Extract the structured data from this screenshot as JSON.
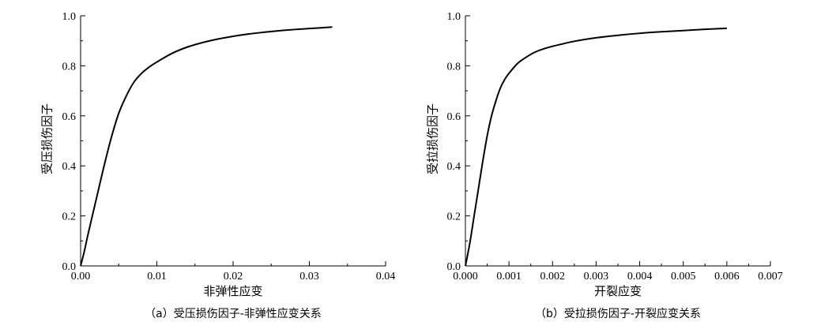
{
  "chart_data": [
    {
      "type": "line",
      "caption": "（a）受压损伤因子-非弹性应变关系",
      "xlabel": "非弹性应变",
      "ylabel": "受压损伤因子",
      "xlim": [
        0,
        0.04
      ],
      "ylim": [
        0,
        1.0
      ],
      "x_ticks": [
        "0.00",
        "0.01",
        "0.02",
        "0.03",
        "0.04"
      ],
      "y_ticks": [
        "0.0",
        "0.2",
        "0.4",
        "0.6",
        "0.8",
        "1.0"
      ],
      "grid": false,
      "series": [
        {
          "x": [
            0,
            0.0005,
            0.001,
            0.002,
            0.003,
            0.004,
            0.005,
            0.006,
            0.007,
            0.008,
            0.009,
            0.01,
            0.012,
            0.014,
            0.016,
            0.018,
            0.02,
            0.022,
            0.024,
            0.026,
            0.028,
            0.03,
            0.033
          ],
          "y": [
            0,
            0.06,
            0.13,
            0.26,
            0.39,
            0.51,
            0.61,
            0.68,
            0.735,
            0.77,
            0.795,
            0.815,
            0.85,
            0.875,
            0.893,
            0.907,
            0.918,
            0.927,
            0.934,
            0.94,
            0.945,
            0.949,
            0.955
          ]
        }
      ]
    },
    {
      "type": "line",
      "caption": "（b）受拉损伤因子-开裂应变关系",
      "xlabel": "开裂应变",
      "ylabel": "受拉损伤因子",
      "xlim": [
        0,
        0.007
      ],
      "ylim": [
        0,
        1.0
      ],
      "x_ticks": [
        "0.000",
        "0.001",
        "0.002",
        "0.003",
        "0.004",
        "0.005",
        "0.006",
        "0.007"
      ],
      "y_ticks": [
        "0.0",
        "0.2",
        "0.4",
        "0.6",
        "0.8",
        "1.0"
      ],
      "grid": false,
      "series": [
        {
          "x": [
            0,
            0.0001,
            0.0002,
            0.0003,
            0.0004,
            0.0005,
            0.0006,
            0.0007,
            0.0008,
            0.0009,
            0.001,
            0.0012,
            0.0014,
            0.0016,
            0.0018,
            0.002,
            0.0025,
            0.003,
            0.0035,
            0.004,
            0.0045,
            0.005,
            0.0055,
            0.006
          ],
          "y": [
            0,
            0.09,
            0.2,
            0.31,
            0.42,
            0.52,
            0.6,
            0.66,
            0.71,
            0.745,
            0.77,
            0.81,
            0.835,
            0.855,
            0.868,
            0.878,
            0.898,
            0.912,
            0.922,
            0.93,
            0.936,
            0.941,
            0.946,
            0.95
          ]
        }
      ]
    }
  ]
}
